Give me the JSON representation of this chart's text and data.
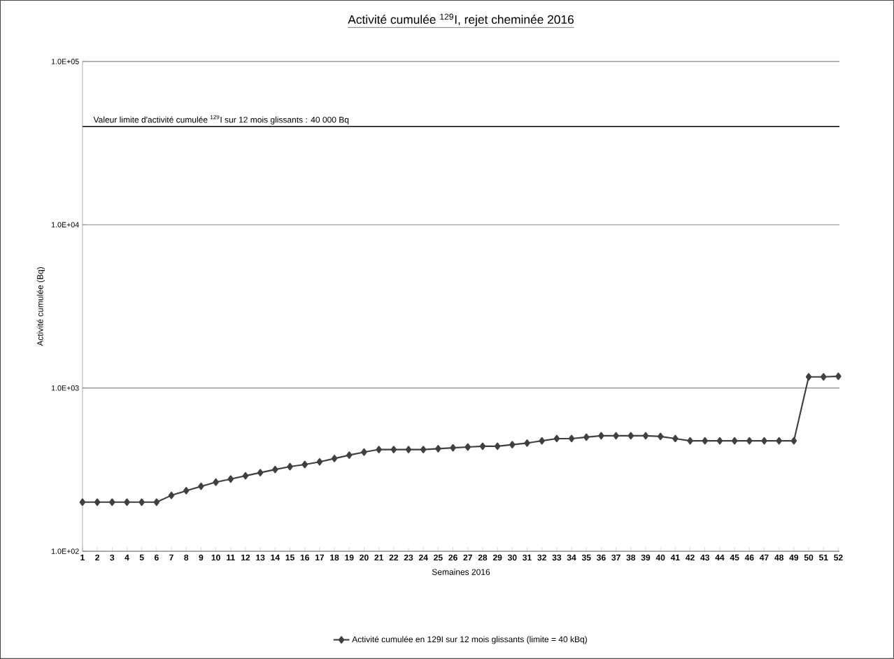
{
  "chart_data": {
    "type": "line",
    "title": "Activité cumulée $^{129}$I, rejet cheminée 2016",
    "xlabel": "Semaines 2016",
    "ylabel": "Activité cumulée (Bq)",
    "categories": [
      "1",
      "2",
      "3",
      "4",
      "5",
      "6",
      "7",
      "8",
      "9",
      "10",
      "11",
      "12",
      "13",
      "14",
      "15",
      "16",
      "17",
      "18",
      "19",
      "20",
      "21",
      "22",
      "23",
      "24",
      "25",
      "26",
      "27",
      "28",
      "29",
      "30",
      "31",
      "32",
      "33",
      "34",
      "35",
      "36",
      "37",
      "38",
      "39",
      "40",
      "41",
      "42",
      "43",
      "44",
      "45",
      "46",
      "47",
      "48",
      "49",
      "50",
      "51",
      "52"
    ],
    "series": [
      {
        "name": "Activité cumulée en 129I sur 12 mois glissants (limite = 40 kBq)",
        "color": "#404040",
        "values": [
          200,
          200,
          200,
          200,
          200,
          200,
          220,
          235,
          250,
          265,
          277,
          290,
          303,
          317,
          330,
          340,
          353,
          370,
          388,
          405,
          420,
          420,
          420,
          420,
          425,
          430,
          435,
          440,
          440,
          450,
          460,
          475,
          490,
          490,
          500,
          510,
          510,
          510,
          510,
          505,
          490,
          475,
          475,
          475,
          475,
          475,
          475,
          475,
          475,
          1170,
          1170,
          1180
        ]
      }
    ],
    "ylim": [
      100,
      100000
    ],
    "yticks": [
      {
        "value": 100,
        "label": "1.0E+02"
      },
      {
        "value": 1000,
        "label": "1.0E+03"
      },
      {
        "value": 10000,
        "label": "1.0E+04"
      },
      {
        "value": 100000,
        "label": "1.0E+05"
      }
    ],
    "log": "y",
    "grid": "y",
    "marker": "diamond",
    "line_style": "solid",
    "legend": "bottom",
    "ref_lines": [
      {
        "axis": "y",
        "value": 40000,
        "label": "Valeur limite d'activité cumulée $^{129}$I sur 12 mois glissants : 40 000 Bq",
        "color": "#000000"
      }
    ]
  }
}
